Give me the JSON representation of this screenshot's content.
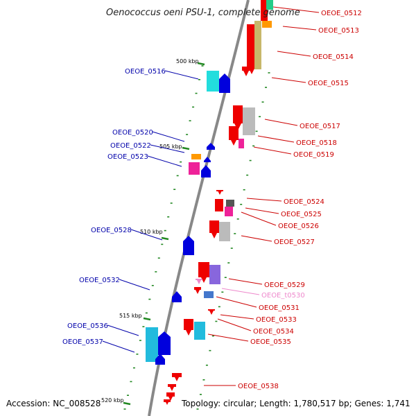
{
  "title": "Oenococcus oeni PSU-1, complete genome",
  "footer": {
    "accession": "Accession: NC_008528",
    "topology": "Topology: circular; Length: 1,780,517 bp; Genes: 1,741"
  },
  "colors": {
    "backbone": "#888888",
    "right_label": "#cc0000",
    "left_label": "#0000aa",
    "trna_label": "#ee88cc",
    "tick": "#228822"
  },
  "ticks": [
    "500 kbp",
    "505 kbp",
    "510 kbp",
    "515 kbp",
    "520 kbp"
  ],
  "right_labels": [
    "OEOE_0512",
    "OEOE_0513",
    "OEOE_0514",
    "OEOE_0515",
    "OEOE_0517",
    "OEOE_0518",
    "OEOE_0519",
    "OEOE_0524",
    "OEOE_0525",
    "OEOE_0526",
    "OEOE_0527",
    "OEOE_0529",
    "OEOE_t0530",
    "OEOE_0531",
    "OEOE_0533",
    "OEOE_0534",
    "OEOE_0535",
    "OEOE_0538"
  ],
  "left_labels": [
    "OEOE_0516",
    "OEOE_0520",
    "OEOE_0522",
    "OEOE_0523",
    "OEOE_0528",
    "OEOE_0532",
    "OEOE_0536",
    "OEOE_0537"
  ]
}
